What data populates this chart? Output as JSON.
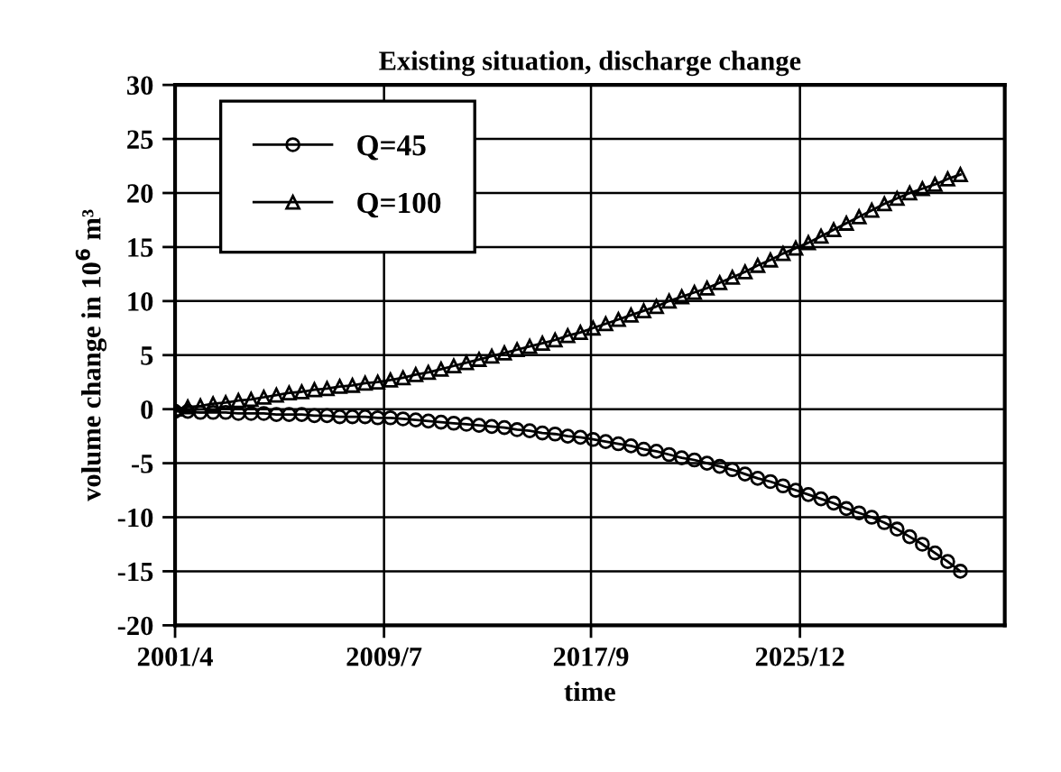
{
  "chart_data": {
    "type": "line",
    "title": "Existing situation, discharge change",
    "xlabel": "time",
    "ylabel": "volume change in 10$^{6}$ m³",
    "x": [
      "2001-04",
      "2001-10",
      "2002-04",
      "2002-10",
      "2003-04",
      "2003-10",
      "2004-04",
      "2004-10",
      "2005-04",
      "2005-10",
      "2006-04",
      "2006-10",
      "2007-04",
      "2007-10",
      "2008-04",
      "2008-10",
      "2009-04",
      "2009-10",
      "2010-04",
      "2010-10",
      "2011-04",
      "2011-10",
      "2012-04",
      "2012-10",
      "2013-04",
      "2013-10",
      "2014-04",
      "2014-10",
      "2015-04",
      "2015-10",
      "2016-04",
      "2016-10",
      "2017-04",
      "2017-10",
      "2018-04",
      "2018-10",
      "2019-04",
      "2019-10",
      "2020-04",
      "2020-10",
      "2021-04",
      "2021-10",
      "2022-04",
      "2022-10",
      "2023-04",
      "2023-10",
      "2024-04",
      "2024-10",
      "2025-04",
      "2025-10",
      "2026-04",
      "2026-10",
      "2027-04",
      "2027-10",
      "2028-04",
      "2028-10",
      "2029-04",
      "2029-10",
      "2030-04",
      "2030-10",
      "2031-04",
      "2031-10",
      "2032-04"
    ],
    "series": [
      {
        "name": "Q=45",
        "color": "#000000",
        "marker": "circle",
        "values": [
          -0.2,
          -0.2,
          -0.3,
          -0.3,
          -0.3,
          -0.4,
          -0.4,
          -0.4,
          -0.5,
          -0.5,
          -0.5,
          -0.6,
          -0.6,
          -0.7,
          -0.7,
          -0.7,
          -0.8,
          -0.8,
          -0.9,
          -1.0,
          -1.1,
          -1.2,
          -1.3,
          -1.4,
          -1.5,
          -1.6,
          -1.7,
          -1.9,
          -2.0,
          -2.2,
          -2.3,
          -2.5,
          -2.6,
          -2.8,
          -3.0,
          -3.2,
          -3.4,
          -3.7,
          -3.9,
          -4.2,
          -4.5,
          -4.7,
          -5.0,
          -5.3,
          -5.6,
          -6.0,
          -6.4,
          -6.7,
          -7.1,
          -7.5,
          -7.9,
          -8.3,
          -8.7,
          -9.2,
          -9.6,
          -10.0,
          -10.5,
          -11.1,
          -11.8,
          -12.5,
          -13.3,
          -14.1,
          -15.0
        ]
      },
      {
        "name": "Q=100",
        "color": "#000000",
        "marker": "triangle",
        "values": [
          0.0,
          0.2,
          0.3,
          0.5,
          0.6,
          0.8,
          0.9,
          1.1,
          1.3,
          1.5,
          1.6,
          1.8,
          1.9,
          2.1,
          2.2,
          2.4,
          2.5,
          2.7,
          2.9,
          3.2,
          3.4,
          3.7,
          4.0,
          4.3,
          4.6,
          4.9,
          5.2,
          5.5,
          5.8,
          6.1,
          6.4,
          6.8,
          7.1,
          7.5,
          7.9,
          8.3,
          8.7,
          9.1,
          9.5,
          10.0,
          10.4,
          10.8,
          11.2,
          11.7,
          12.2,
          12.7,
          13.3,
          13.8,
          14.4,
          14.9,
          15.4,
          16.0,
          16.6,
          17.2,
          17.8,
          18.4,
          19.0,
          19.5,
          20.0,
          20.4,
          20.8,
          21.3,
          21.7
        ]
      }
    ],
    "xlim": [
      "2001-04",
      "2034-01"
    ],
    "xticks": [
      {
        "value": "2001-04",
        "label": "2001/4"
      },
      {
        "value": "2009-07",
        "label": "2009/7"
      },
      {
        "value": "2017-09",
        "label": "2017/9"
      },
      {
        "value": "2025-12",
        "label": "2025/12"
      }
    ],
    "ylim": [
      -20,
      30
    ],
    "yticks": [
      -20,
      -15,
      -10,
      -5,
      0,
      5,
      10,
      15,
      20,
      25,
      30
    ],
    "grid": true,
    "legend": "top left",
    "line_style": "solid"
  }
}
